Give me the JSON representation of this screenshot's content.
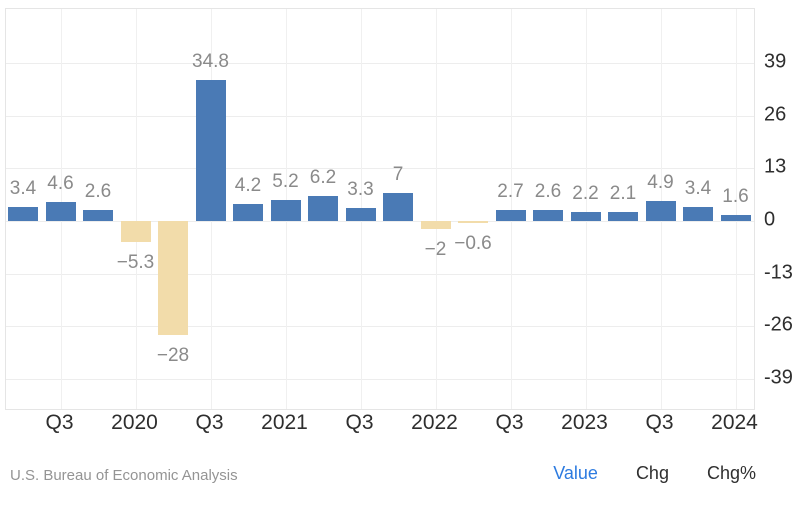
{
  "chart_data": {
    "type": "bar",
    "title": "",
    "xlabel": "",
    "ylabel": "",
    "categories": [
      "2019 Q2",
      "2019 Q3",
      "2019 Q4",
      "2020 Q1",
      "2020 Q2",
      "2020 Q3",
      "2020 Q4",
      "2021 Q1",
      "2021 Q2",
      "2021 Q3",
      "2021 Q4",
      "2022 Q1",
      "2022 Q2",
      "2022 Q3",
      "2022 Q4",
      "2023 Q1",
      "2023 Q2",
      "2023 Q3",
      "2023 Q4",
      "2024 Q1"
    ],
    "values": [
      3.4,
      4.6,
      2.6,
      -5.3,
      -28,
      34.8,
      4.2,
      5.2,
      6.2,
      3.3,
      7,
      -2,
      -0.6,
      2.7,
      2.6,
      2.2,
      2.1,
      4.9,
      3.4,
      1.6
    ],
    "value_labels": [
      "3.4",
      "4.6",
      "2.6",
      "−5.3",
      "−28",
      "34.8",
      "4.2",
      "5.2",
      "6.2",
      "3.3",
      "7",
      "−2",
      "−0.6",
      "2.7",
      "2.6",
      "2.2",
      "2.1",
      "4.9",
      "3.4",
      "1.6"
    ],
    "x_tick_labels": [
      "Q3",
      "2020",
      "Q3",
      "2021",
      "Q3",
      "2022",
      "Q3",
      "2023",
      "Q3",
      "2024"
    ],
    "y_ticks": [
      39,
      26,
      13,
      0,
      -13,
      -26,
      -39
    ],
    "y_tick_labels": [
      "39",
      "26",
      "13",
      "0",
      "-13",
      "-26",
      "-39"
    ],
    "ylim": [
      -47,
      52
    ],
    "grid": true,
    "legend": "none",
    "colors": {
      "positive_bar": "#4a7ab5",
      "negative_bar": "#f2dcaa",
      "value_label": "#8a8a8a",
      "axis_label": "#2e2e2e",
      "gridline": "#ededed"
    }
  },
  "footer": {
    "source": "U.S. Bureau of Economic Analysis",
    "tabs": [
      {
        "label": "Value",
        "active": true
      },
      {
        "label": "Chg",
        "active": false
      },
      {
        "label": "Chg%",
        "active": false
      }
    ],
    "active_tab_color": "#2d7be0"
  }
}
